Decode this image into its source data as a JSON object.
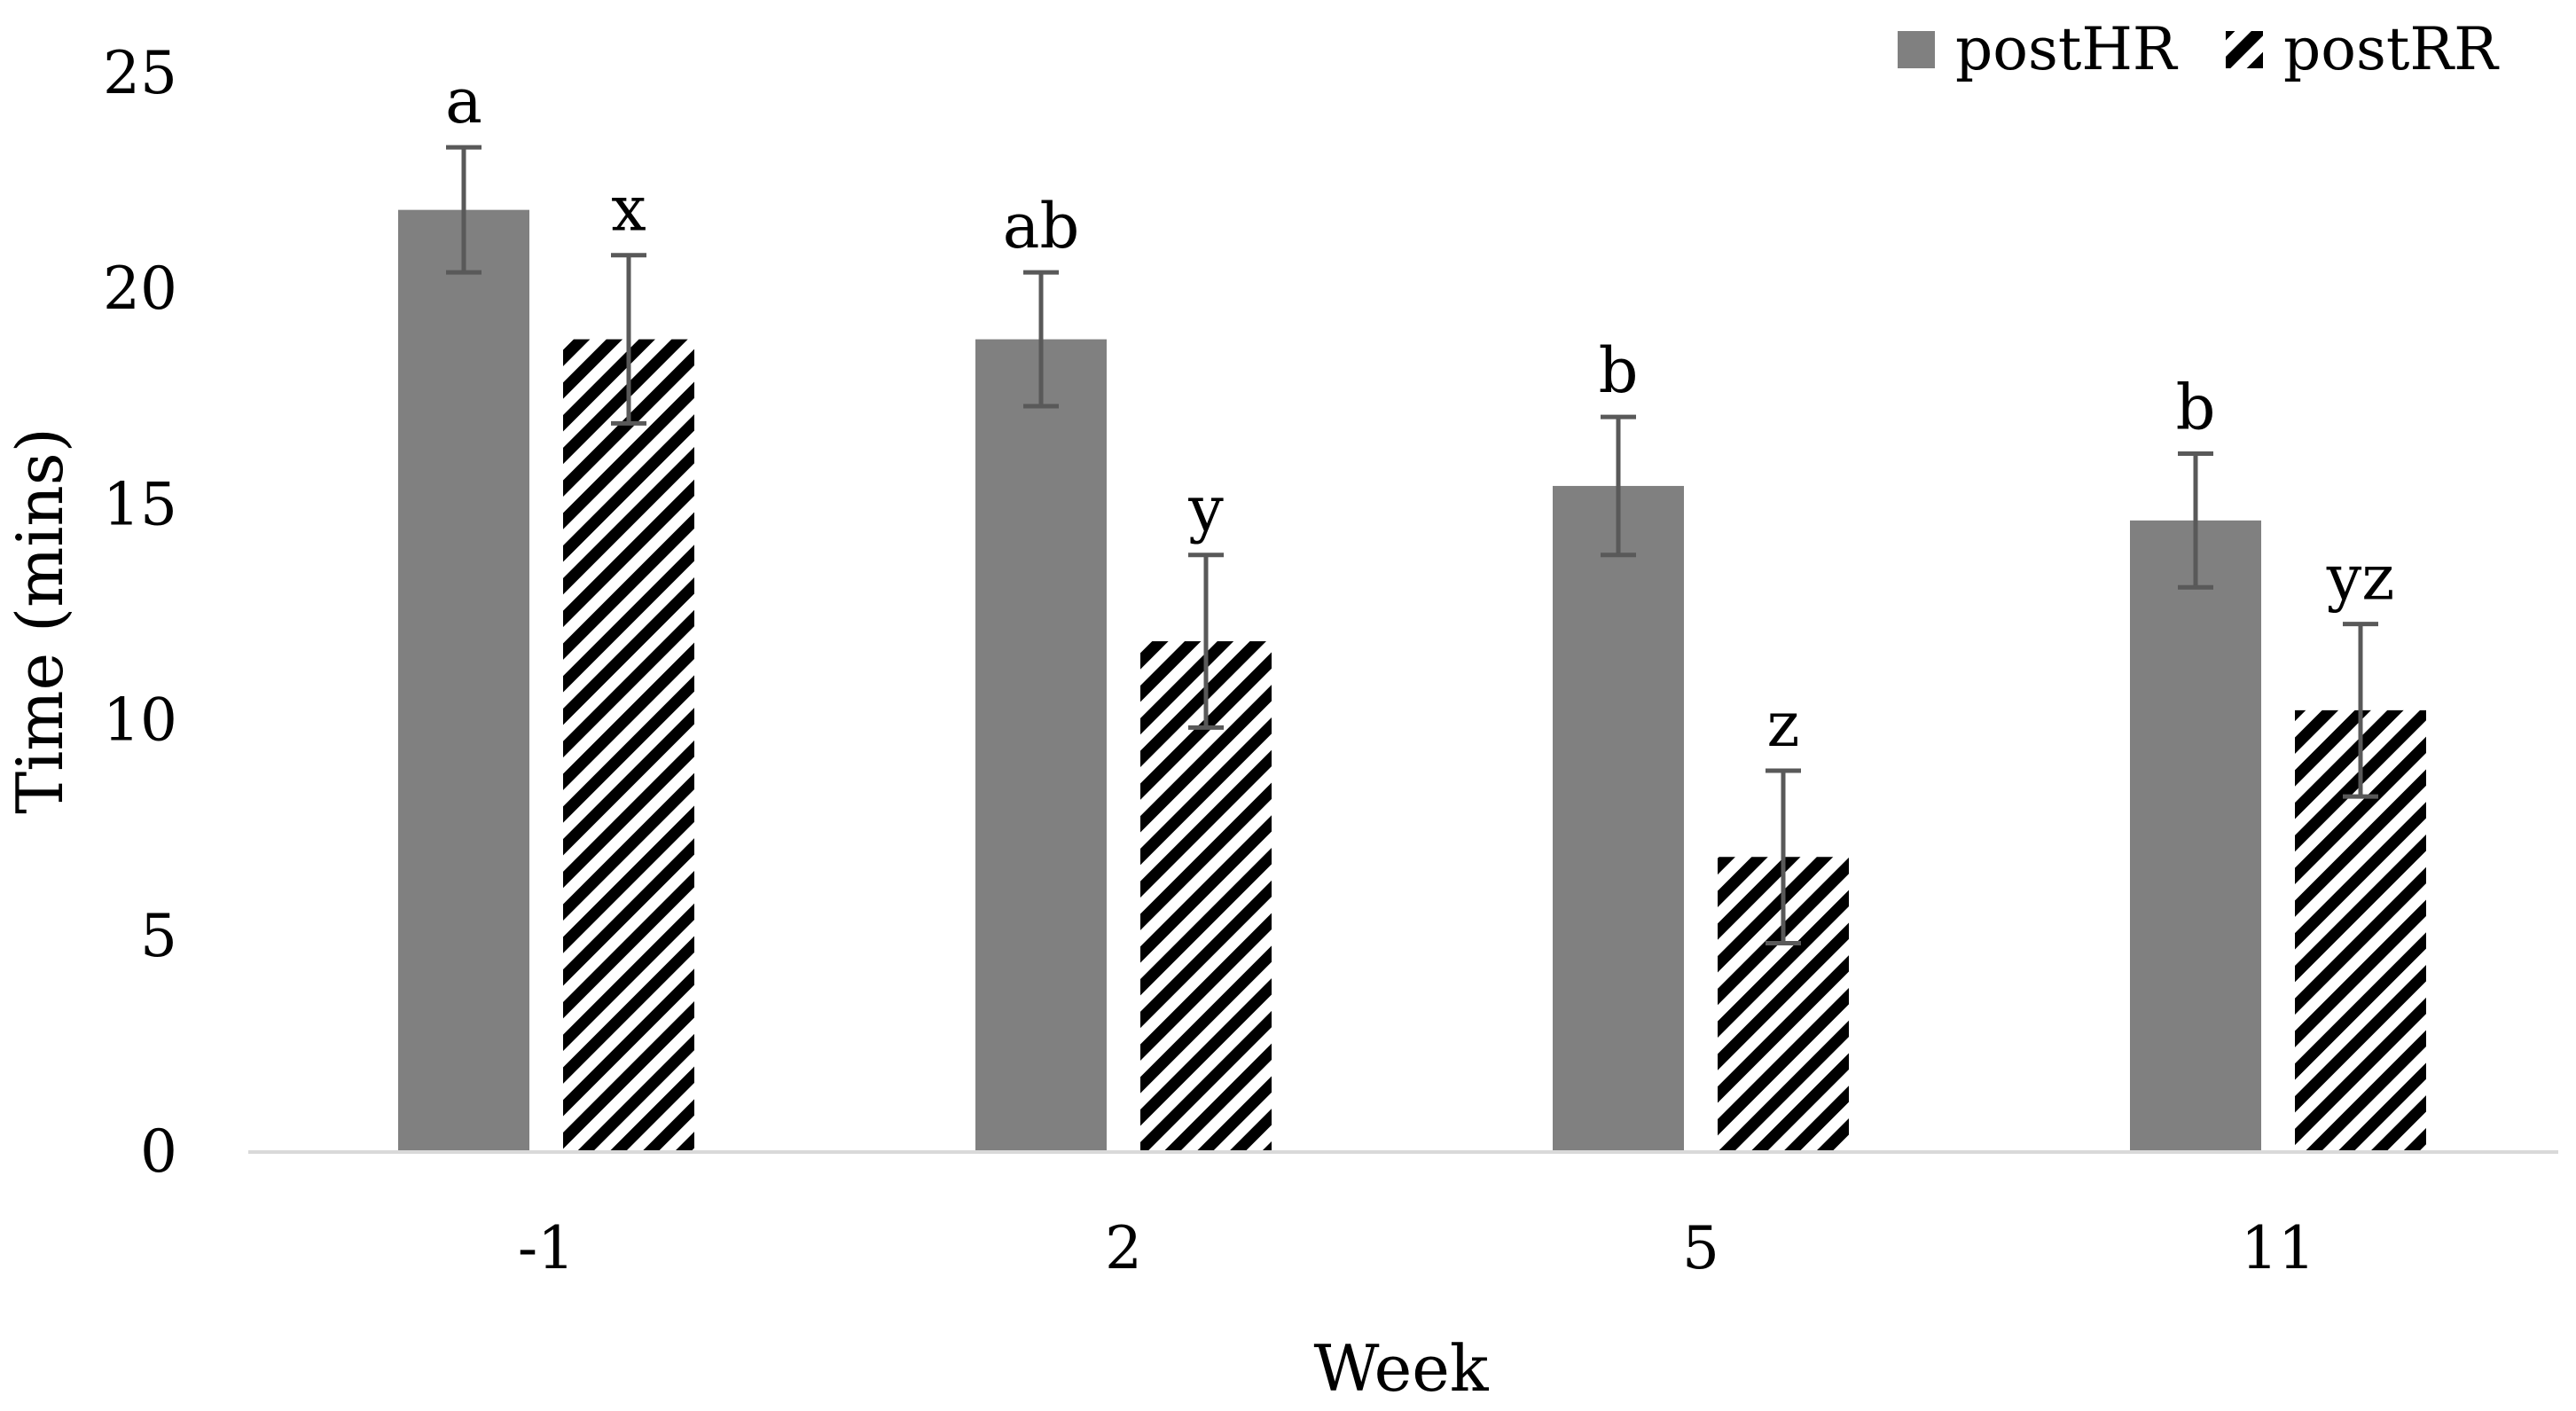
{
  "chart_data": {
    "type": "bar",
    "title": "",
    "xlabel": "Week",
    "ylabel": "Time (mins)",
    "ylim": [
      0,
      25
    ],
    "yticks": [
      0,
      5,
      10,
      15,
      20,
      25
    ],
    "grid": false,
    "legend_position": "top-right",
    "categories": [
      "-1",
      "2",
      "5",
      "11"
    ],
    "series": [
      {
        "name": "postHR",
        "pattern": "solid",
        "color": "#808080",
        "values": [
          21.8,
          18.8,
          15.4,
          14.6
        ],
        "errors": [
          1.45,
          1.55,
          1.6,
          1.55
        ],
        "labels": [
          "a",
          "ab",
          "b",
          "b"
        ]
      },
      {
        "name": "postRR",
        "pattern": "diagonal-stripes",
        "color": "#000000",
        "values": [
          18.8,
          11.8,
          6.8,
          10.2
        ],
        "errors": [
          1.95,
          2.0,
          2.0,
          2.0
        ],
        "labels": [
          "x",
          "y",
          "z",
          "yz"
        ]
      }
    ],
    "error_bar_color": "#595959",
    "axis_color": "#d9d9d9"
  }
}
